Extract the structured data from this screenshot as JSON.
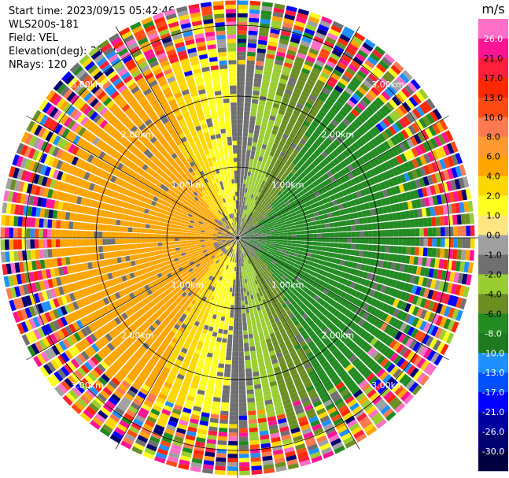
{
  "header": {
    "start_time": "Start time: 2023/09/15 05:42:46",
    "instrument": "WLS200s-181",
    "field": "Field: VEL",
    "elevation": "Elevation(deg): 35.30",
    "nrays": "NRays: 120"
  },
  "chart_data": {
    "type": "ppi",
    "field": "VEL",
    "units": "m/s",
    "range_rings_km": [
      1.0,
      2.0,
      3.0
    ],
    "ring_labels": [
      "1.00km",
      "2.00km",
      "3.00km"
    ],
    "n_rays": 120,
    "colorbar": {
      "label": "m/s",
      "ticks": [
        "26.0",
        "21.0",
        "17.0",
        "13.0",
        "10.0",
        "8.0",
        "6.0",
        "4.0",
        "2.0",
        "1.0",
        "0.0",
        "-1.0",
        "-2.0",
        "-4.0",
        "-6.0",
        "-8.0",
        "-10.0",
        "-13.0",
        "-17.0",
        "-21.0",
        "-26.0",
        "-30.0"
      ],
      "colors": [
        "#ff6ec7",
        "#ff1493",
        "#ff1e3c",
        "#ff2800",
        "#ff4a14",
        "#ff7a50",
        "#ff9a30",
        "#ffa500",
        "#ffd700",
        "#ffff20",
        "#ffe680",
        "#a0a0a0",
        "#707070",
        "#9acd32",
        "#6b8e23",
        "#228b22",
        "#1e7a1e",
        "#1e90ff",
        "#0050ff",
        "#0000ff",
        "#0000a0",
        "#000070",
        "#000040"
      ]
    },
    "pattern": {
      "near_range_description_free": true,
      "inner_noise_km": 0.3,
      "clean_data_km": 2.6,
      "noisy_range_start_km": 2.6
    },
    "colors": {
      "ring_line": "#000000",
      "background": "#ffffff"
    }
  }
}
